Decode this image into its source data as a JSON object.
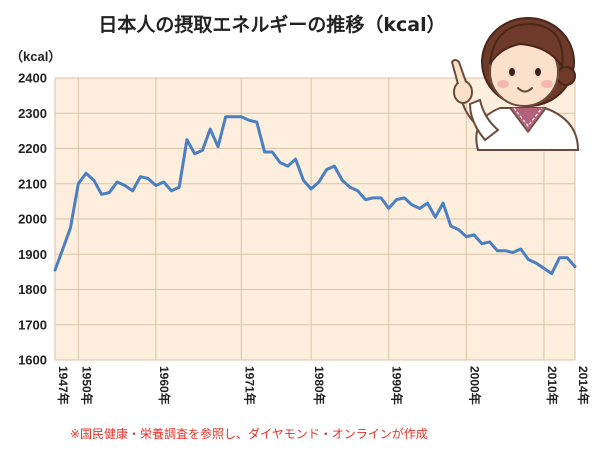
{
  "chart_data": {
    "type": "line",
    "title": "日本人の摂取エネルギーの推移（kcal）",
    "ylabel": "（kcal）",
    "xlabel": "",
    "ylim": [
      1600,
      2400
    ],
    "yticks": [
      "2400",
      "2300",
      "2200",
      "2100",
      "2000",
      "1900",
      "1800",
      "1700",
      "1600"
    ],
    "xticks": [
      {
        "x": 1947,
        "label": "1947年"
      },
      {
        "x": 1950,
        "label": "1950年"
      },
      {
        "x": 1960,
        "label": "1960年"
      },
      {
        "x": 1971,
        "label": "1971年"
      },
      {
        "x": 1980,
        "label": "1980年"
      },
      {
        "x": 1990,
        "label": "1990年"
      },
      {
        "x": 2000,
        "label": "2000年"
      },
      {
        "x": 2010,
        "label": "2010年"
      },
      {
        "x": 2014,
        "label": "2014年"
      }
    ],
    "xlim": [
      1947,
      2014
    ],
    "grid": true,
    "colors": {
      "line": "#4a7fc1",
      "plot_bg": "#fdeedd",
      "grid": "#d9c3a8"
    },
    "series": [
      {
        "x": [
          1947,
          1948,
          1949,
          1950,
          1951,
          1952,
          1953,
          1954,
          1955,
          1956,
          1957,
          1958,
          1959,
          1960,
          1961,
          1962,
          1963,
          1964,
          1965,
          1966,
          1967,
          1968,
          1969,
          1970,
          1971,
          1972,
          1973,
          1974,
          1975,
          1976,
          1977,
          1978,
          1979,
          1980,
          1981,
          1982,
          1983,
          1984,
          1985,
          1986,
          1987,
          1988,
          1989,
          1990,
          1991,
          1992,
          1993,
          1994,
          1995,
          1996,
          1997,
          1998,
          1999,
          2000,
          2001,
          2002,
          2003,
          2004,
          2005,
          2006,
          2007,
          2008,
          2009,
          2010,
          2011,
          2012,
          2013,
          2014
        ],
        "values": [
          1855,
          1915,
          1975,
          2100,
          2130,
          2110,
          2070,
          2075,
          2105,
          2095,
          2080,
          2120,
          2115,
          2095,
          2105,
          2080,
          2090,
          2225,
          2185,
          2195,
          2255,
          2205,
          2290,
          2290,
          2290,
          2280,
          2275,
          2190,
          2190,
          2160,
          2150,
          2170,
          2110,
          2085,
          2105,
          2140,
          2150,
          2110,
          2090,
          2080,
          2055,
          2060,
          2060,
          2030,
          2055,
          2060,
          2040,
          2030,
          2045,
          2005,
          2045,
          1980,
          1970,
          1950,
          1955,
          1930,
          1935,
          1910,
          1910,
          1905,
          1915,
          1885,
          1875,
          1860,
          1845,
          1890,
          1890,
          1865
        ]
      }
    ]
  },
  "footer": {
    "note": "※国民健康・栄養調査を参照し、ダイヤモンド・オンラインが作成"
  }
}
